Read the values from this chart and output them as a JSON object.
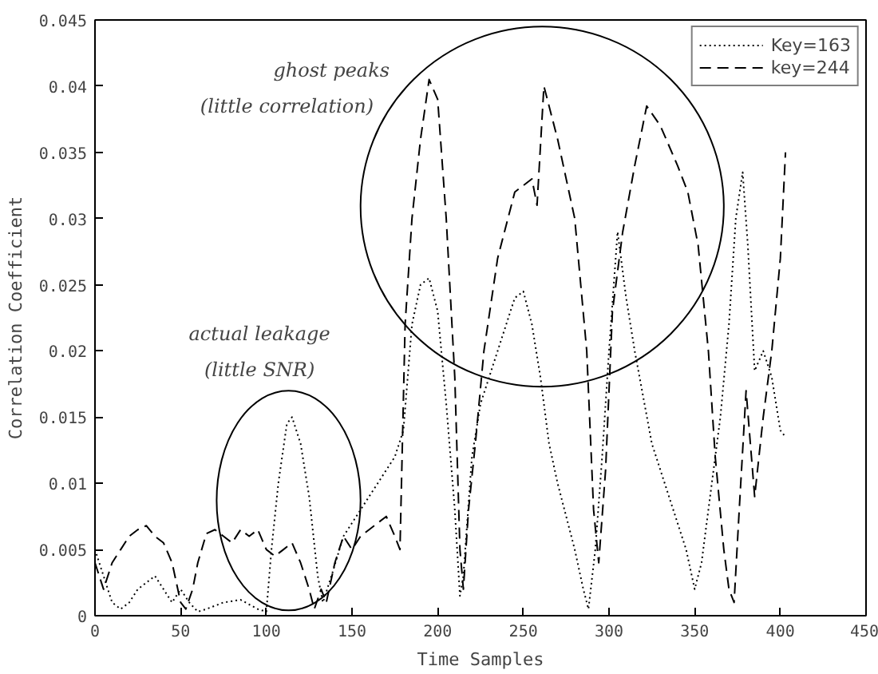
{
  "chart_data": {
    "type": "line",
    "xlabel": "Time Samples",
    "ylabel": "Correlation Coefficient",
    "xlim": [
      0,
      450
    ],
    "ylim": [
      0,
      0.045
    ],
    "xticks": [
      0,
      50,
      100,
      150,
      200,
      250,
      300,
      350,
      400,
      450
    ],
    "yticks": [
      0,
      0.005,
      0.01,
      0.015,
      0.02,
      0.025,
      0.03,
      0.035,
      0.04,
      0.045
    ],
    "grid": false,
    "legend": "top right",
    "annotations": [
      "ghost peaks",
      "(little correlation)",
      "actual leakage",
      "(little SNR)"
    ],
    "series": [
      {
        "name": "Key=163",
        "color": "#000000",
        "line_style": "dotted",
        "x": [
          0,
          5,
          10,
          15,
          20,
          25,
          30,
          35,
          40,
          45,
          50,
          55,
          60,
          65,
          75,
          85,
          95,
          100,
          103,
          107,
          112,
          115,
          120,
          125,
          130,
          133,
          138,
          145,
          155,
          165,
          175,
          180,
          185,
          190,
          195,
          200,
          205,
          210,
          213,
          215,
          220,
          225,
          235,
          245,
          250,
          255,
          260,
          265,
          270,
          280,
          285,
          288,
          292,
          296,
          300,
          305,
          310,
          315,
          325,
          335,
          345,
          350,
          354,
          360,
          365,
          370,
          374,
          378,
          381,
          385,
          390,
          395,
          400,
          403
        ],
        "values": [
          0.005,
          0.003,
          0.001,
          0.0005,
          0.001,
          0.002,
          0.0025,
          0.003,
          0.002,
          0.001,
          0.002,
          0.001,
          0.0003,
          0.0005,
          0.001,
          0.0012,
          0.0005,
          0.0003,
          0.005,
          0.01,
          0.0145,
          0.015,
          0.013,
          0.009,
          0.003,
          0.001,
          0.003,
          0.006,
          0.008,
          0.01,
          0.012,
          0.014,
          0.022,
          0.025,
          0.0255,
          0.023,
          0.016,
          0.008,
          0.0015,
          0.003,
          0.012,
          0.016,
          0.02,
          0.024,
          0.0245,
          0.022,
          0.018,
          0.013,
          0.01,
          0.005,
          0.002,
          0.0005,
          0.005,
          0.012,
          0.02,
          0.029,
          0.024,
          0.02,
          0.013,
          0.009,
          0.005,
          0.002,
          0.004,
          0.01,
          0.015,
          0.022,
          0.03,
          0.0335,
          0.028,
          0.0185,
          0.02,
          0.018,
          0.014,
          0.0135
        ]
      },
      {
        "name": "key=244",
        "color": "#000000",
        "line_style": "dashed",
        "x": [
          0,
          5,
          10,
          15,
          20,
          25,
          30,
          35,
          40,
          45,
          50,
          53,
          57,
          60,
          65,
          70,
          75,
          80,
          85,
          90,
          95,
          100,
          105,
          110,
          115,
          120,
          125,
          128,
          132,
          135,
          140,
          145,
          150,
          155,
          160,
          165,
          170,
          175,
          178,
          181,
          185,
          190,
          195,
          200,
          205,
          210,
          213,
          215,
          218,
          222,
          227,
          235,
          245,
          255,
          258,
          262,
          270,
          280,
          287,
          291,
          294,
          298,
          302,
          308,
          315,
          322,
          330,
          340,
          346,
          352,
          358,
          362,
          367,
          370,
          373,
          376,
          380,
          385,
          390,
          395,
          400,
          403
        ],
        "values": [
          0.004,
          0.002,
          0.004,
          0.005,
          0.006,
          0.0065,
          0.0068,
          0.006,
          0.0055,
          0.004,
          0.001,
          0.0005,
          0.002,
          0.004,
          0.0062,
          0.0065,
          0.006,
          0.0055,
          0.0065,
          0.006,
          0.0065,
          0.005,
          0.0045,
          0.005,
          0.0055,
          0.004,
          0.002,
          0.0005,
          0.002,
          0.001,
          0.004,
          0.006,
          0.005,
          0.006,
          0.0065,
          0.007,
          0.0075,
          0.006,
          0.005,
          0.022,
          0.03,
          0.036,
          0.0405,
          0.039,
          0.03,
          0.018,
          0.005,
          0.002,
          0.008,
          0.013,
          0.02,
          0.027,
          0.032,
          0.033,
          0.031,
          0.04,
          0.036,
          0.03,
          0.02,
          0.008,
          0.004,
          0.011,
          0.023,
          0.029,
          0.034,
          0.0385,
          0.037,
          0.034,
          0.032,
          0.028,
          0.02,
          0.012,
          0.005,
          0.002,
          0.001,
          0.008,
          0.017,
          0.009,
          0.015,
          0.02,
          0.027,
          0.035
        ]
      }
    ]
  }
}
